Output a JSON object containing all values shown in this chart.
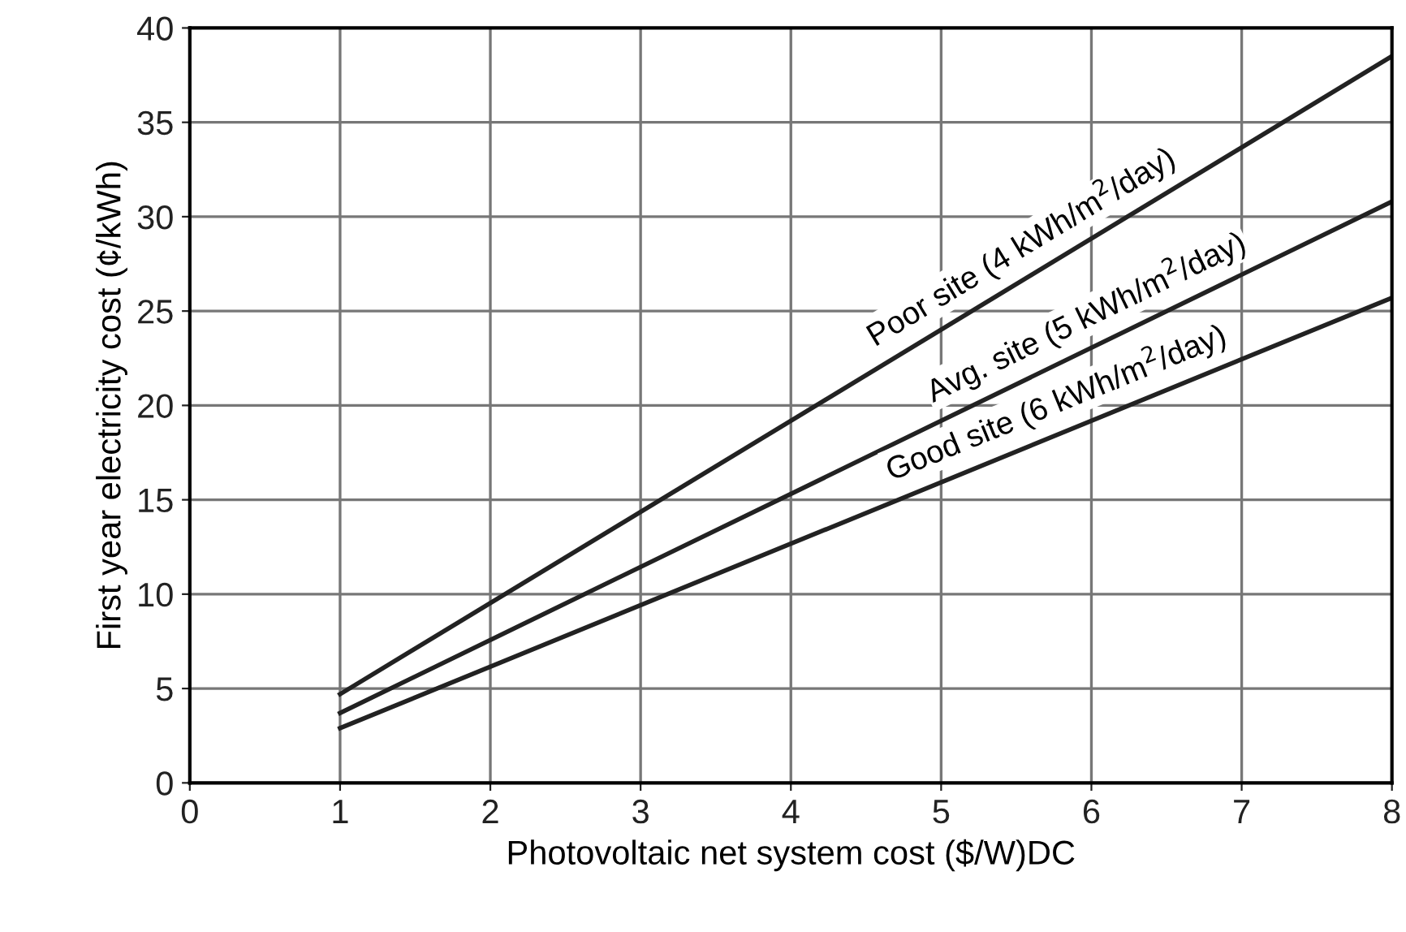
{
  "chart_data": {
    "type": "line",
    "xlabel": "Photovoltaic net system cost ($/W)DC",
    "ylabel": "First year electricity cost (¢/kWh)",
    "x": [
      1,
      8
    ],
    "series": [
      {
        "name": "Poor site (4 kWh/m$^{2}$/day)",
        "color": "#222222",
        "values": [
          4.7,
          38.5
        ]
      },
      {
        "name": "Avg. site (5 kWh/m$^{2}$/day)",
        "color": "#222222",
        "values": [
          3.7,
          30.8
        ]
      },
      {
        "name": "Good site (6 kWh/m$^{2}$/day)",
        "color": "#222222",
        "values": [
          2.9,
          25.7
        ]
      }
    ],
    "xlim": [
      0,
      8
    ],
    "xticks": [
      0,
      1,
      2,
      3,
      4,
      5,
      6,
      7,
      8
    ],
    "ylim": [
      0,
      40
    ],
    "yticks": [
      0,
      5,
      10,
      15,
      20,
      25,
      30,
      35,
      40
    ],
    "grid": true,
    "legend": false,
    "marker": "none",
    "line_style": "solid"
  }
}
